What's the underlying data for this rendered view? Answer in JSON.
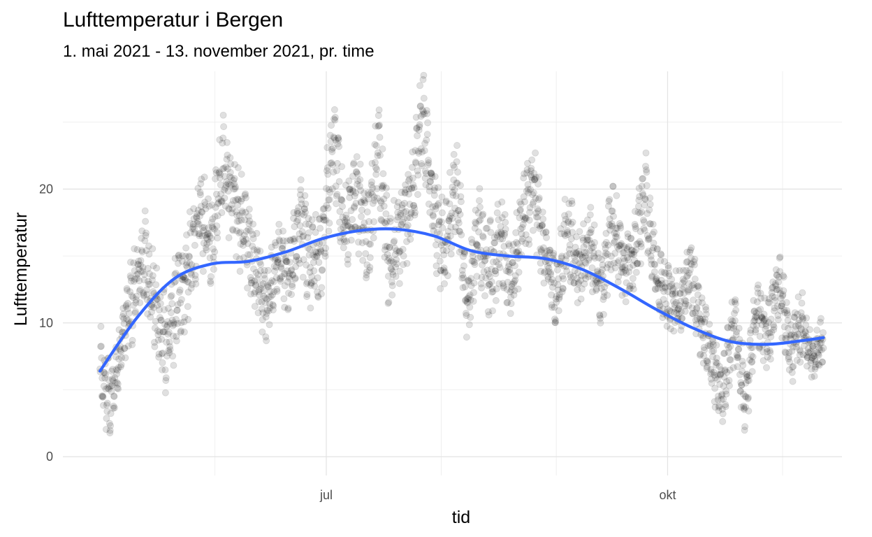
{
  "chart_data": {
    "type": "scatter",
    "title": "Lufttemperatur i Bergen",
    "subtitle": "1. mai 2021 - 13. november 2021, pr. time",
    "xlabel": "tid",
    "ylabel": "Lufttemperatur",
    "x_range": [
      "2021-05-01",
      "2021-11-13"
    ],
    "xlim": [
      "2021-04-21",
      "2021-11-17"
    ],
    "ylim": [
      -1.4,
      28.8
    ],
    "x_ticks": [
      {
        "date": "2021-07-01",
        "label": "jul"
      },
      {
        "date": "2021-10-01",
        "label": "okt"
      }
    ],
    "x_minor_ticks": [
      "2021-06-01",
      "2021-08-01",
      "2021-09-01",
      "2021-11-01"
    ],
    "y_ticks": [
      0,
      10,
      20
    ],
    "y_minor_ticks": [
      5,
      15,
      25
    ],
    "grid": true,
    "point_color": "#000000",
    "point_opacity": 0.12,
    "smooth_color": "#3366FF",
    "series": [
      {
        "type": "scatter",
        "x": [
          "2021-05-01",
          "2021-05-04",
          "2021-05-07",
          "2021-05-10",
          "2021-05-13",
          "2021-05-16",
          "2021-05-19",
          "2021-05-22",
          "2021-05-25",
          "2021-05-28",
          "2021-05-31",
          "2021-06-03",
          "2021-06-06",
          "2021-06-09",
          "2021-06-12",
          "2021-06-15",
          "2021-06-18",
          "2021-06-21",
          "2021-06-24",
          "2021-06-27",
          "2021-06-30",
          "2021-07-03",
          "2021-07-06",
          "2021-07-09",
          "2021-07-12",
          "2021-07-15",
          "2021-07-18",
          "2021-07-21",
          "2021-07-24",
          "2021-07-27",
          "2021-07-30",
          "2021-08-02",
          "2021-08-05",
          "2021-08-08",
          "2021-08-11",
          "2021-08-14",
          "2021-08-17",
          "2021-08-20",
          "2021-08-23",
          "2021-08-26",
          "2021-08-29",
          "2021-09-01",
          "2021-09-04",
          "2021-09-07",
          "2021-09-10",
          "2021-09-13",
          "2021-09-16",
          "2021-09-19",
          "2021-09-22",
          "2021-09-25",
          "2021-09-28",
          "2021-10-01",
          "2021-10-04",
          "2021-10-07",
          "2021-10-10",
          "2021-10-13",
          "2021-10-16",
          "2021-10-19",
          "2021-10-22",
          "2021-10-25",
          "2021-10-28",
          "2021-10-31",
          "2021-11-03",
          "2021-11-06",
          "2021-11-09",
          "2021-11-12"
        ],
        "y": [
          6,
          4,
          9,
          12,
          15,
          11,
          8,
          12,
          14,
          18,
          16,
          22,
          19,
          17,
          14,
          11,
          15,
          13,
          18,
          14,
          16,
          24,
          17,
          20,
          16,
          23,
          14,
          17,
          19,
          26,
          18,
          15,
          21,
          11,
          17,
          14,
          16,
          13,
          18,
          20,
          15,
          12,
          17,
          14,
          16,
          12,
          18,
          14,
          15,
          20,
          13,
          12,
          11,
          14,
          10,
          7,
          5,
          10,
          4,
          11,
          9,
          13,
          8,
          10,
          7,
          9
        ],
        "y_spread": [
          4,
          3,
          3,
          4,
          4,
          4,
          4,
          4,
          4,
          4,
          4,
          4,
          4,
          4,
          3,
          3,
          3,
          3,
          4,
          4,
          4,
          4,
          4,
          4,
          4,
          4,
          4,
          4,
          4,
          4,
          4,
          4,
          4,
          3,
          4,
          4,
          4,
          3,
          4,
          4,
          3,
          3,
          4,
          3,
          3,
          3,
          4,
          3,
          3,
          4,
          3,
          3,
          3,
          3,
          3,
          3,
          3,
          3,
          3,
          3,
          3,
          3,
          3,
          3,
          2,
          2
        ]
      },
      {
        "type": "smooth",
        "x": [
          "2021-05-01",
          "2021-05-11",
          "2021-05-21",
          "2021-05-31",
          "2021-06-10",
          "2021-06-20",
          "2021-06-30",
          "2021-07-10",
          "2021-07-20",
          "2021-07-30",
          "2021-08-09",
          "2021-08-19",
          "2021-08-29",
          "2021-09-08",
          "2021-09-18",
          "2021-09-28",
          "2021-10-08",
          "2021-10-18",
          "2021-10-28",
          "2021-11-07",
          "2021-11-12"
        ],
        "y": [
          6.4,
          10.4,
          13.3,
          14.4,
          14.6,
          15.3,
          16.3,
          16.9,
          17.0,
          16.5,
          15.4,
          15.0,
          14.8,
          14.0,
          12.6,
          11.0,
          9.6,
          8.6,
          8.4,
          8.7,
          8.9
        ]
      }
    ]
  }
}
